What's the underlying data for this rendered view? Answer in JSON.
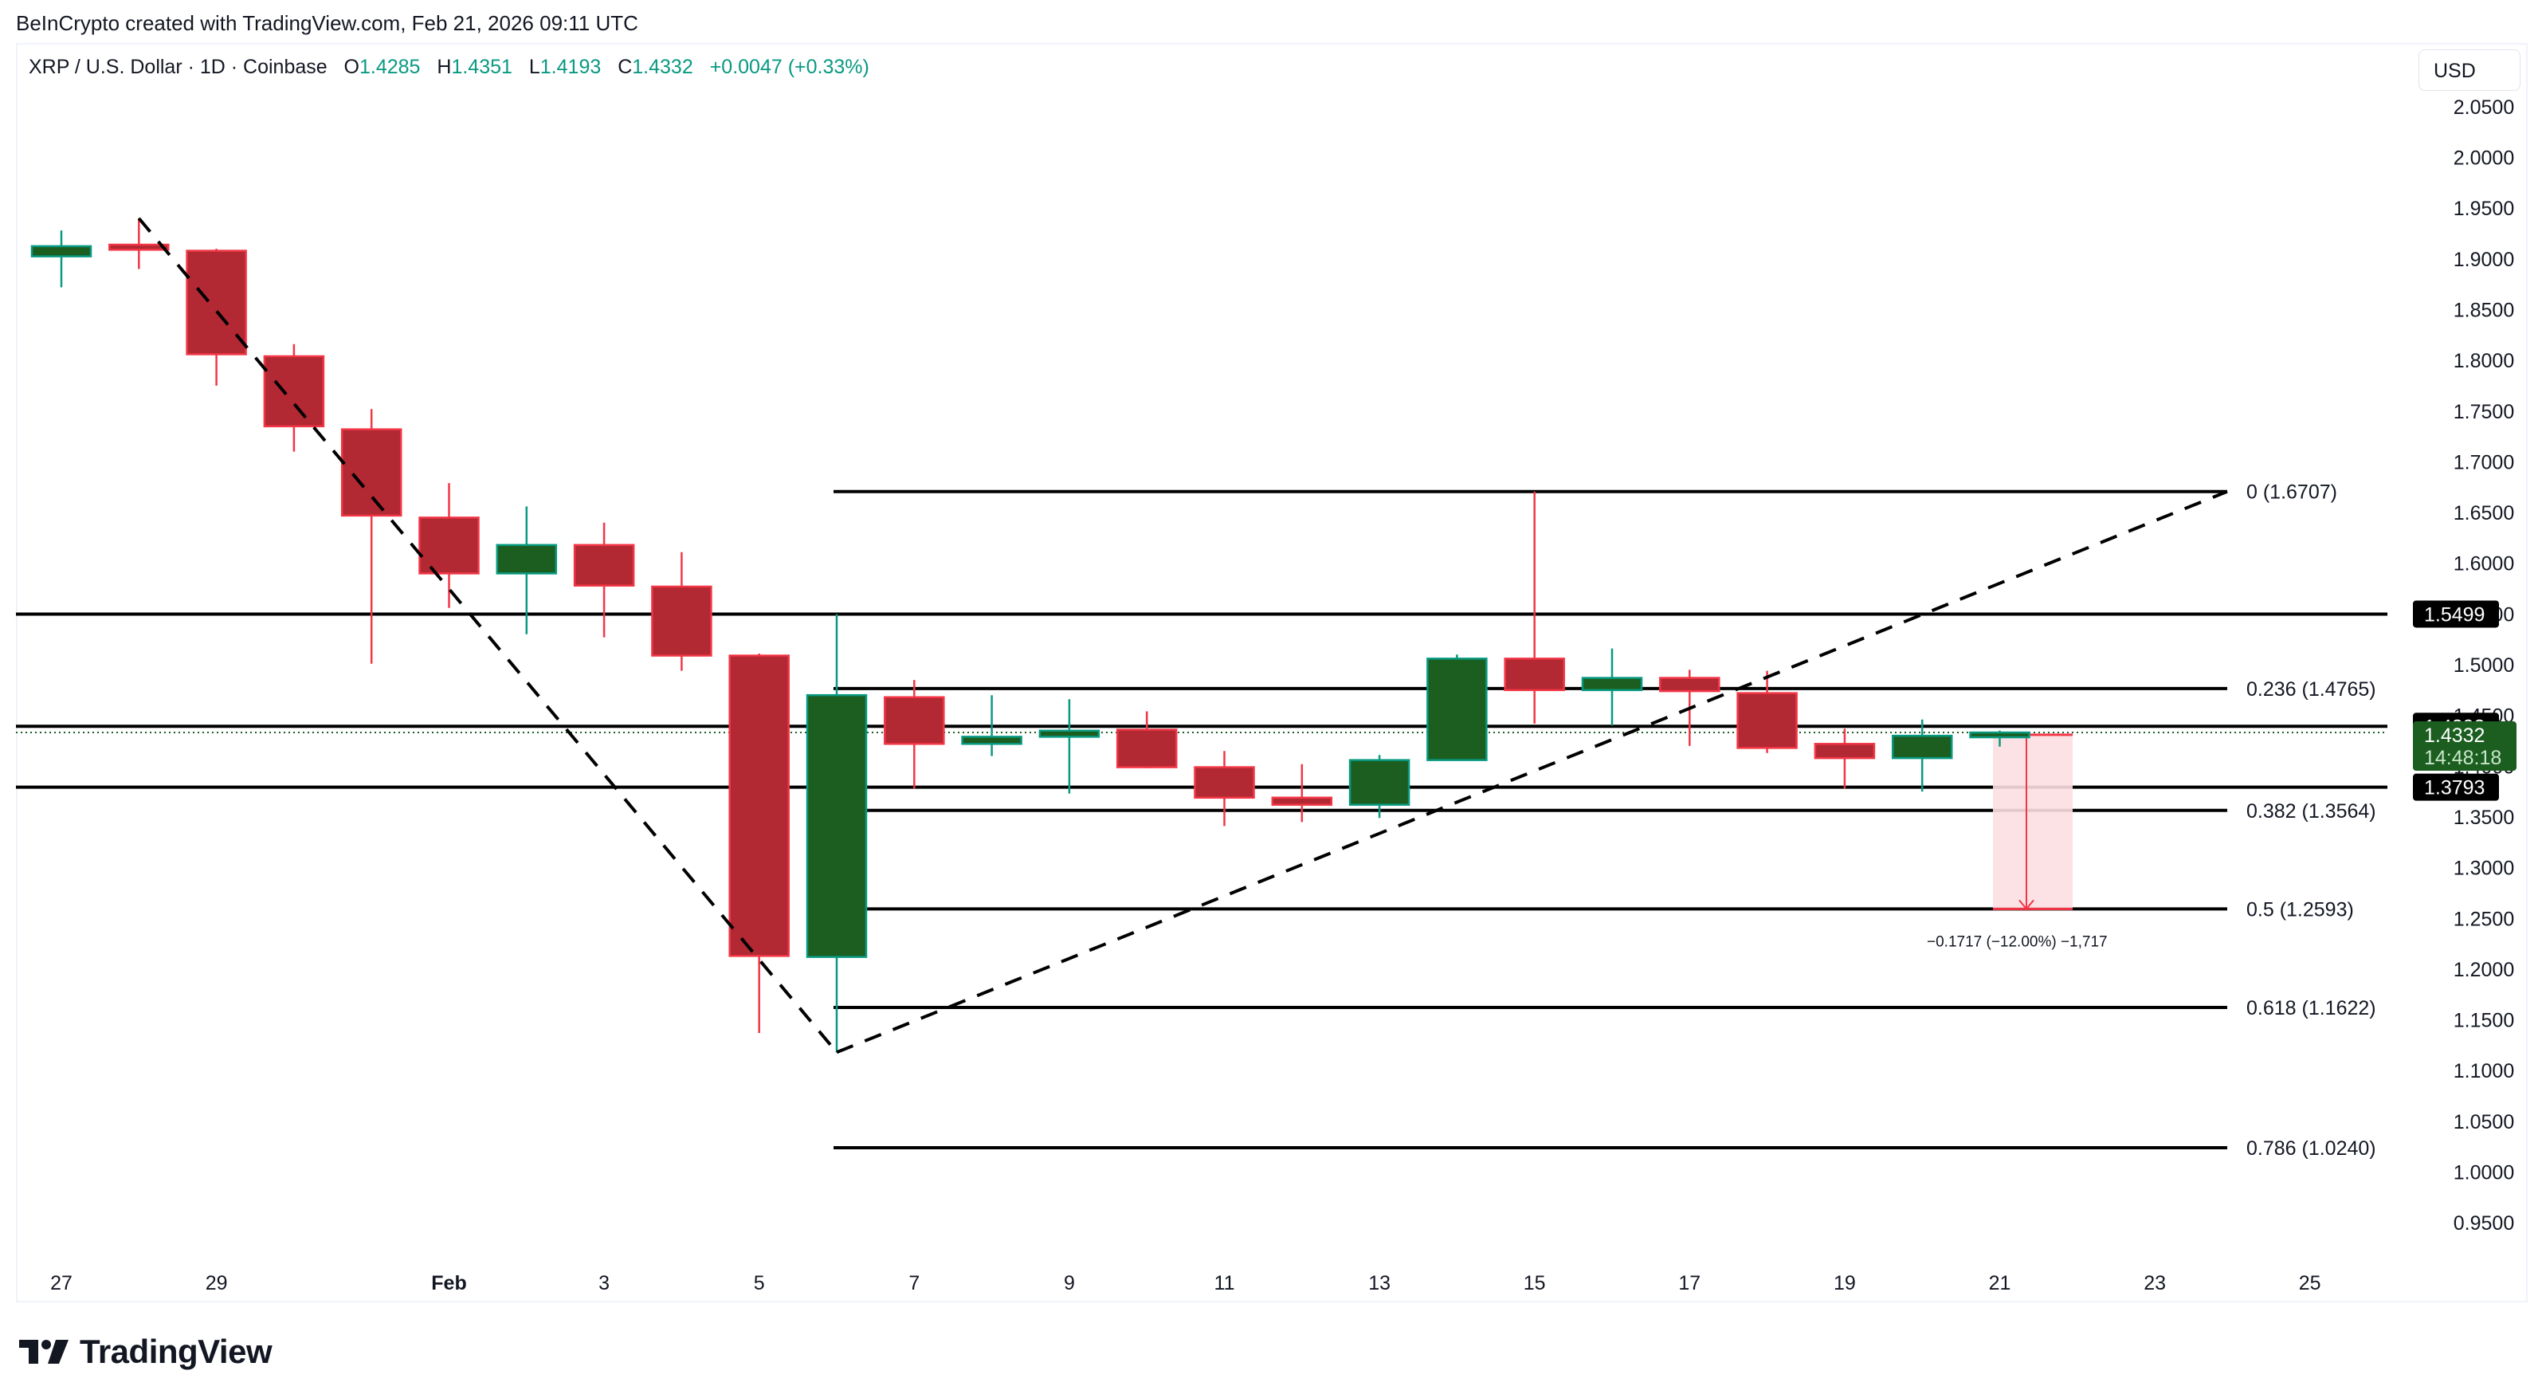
{
  "credit": "BeInCrypto created with TradingView.com, Feb 21, 2026 09:11 UTC",
  "legend": {
    "symbol": "XRP / U.S. Dollar · 1D · Coinbase",
    "open_label": "O",
    "open": "1.4285",
    "high_label": "H",
    "high": "1.4351",
    "low_label": "L",
    "low": "1.4193",
    "close_label": "C",
    "close": "1.4332",
    "change": "+0.0047 (+0.33%)"
  },
  "currency_button": "USD",
  "logo_text": "TradingView",
  "colors": {
    "up_fill": "#1b5e20",
    "up_border": "#089981",
    "down_fill": "#b22833",
    "down_border": "#f23645",
    "measure_fill": "#fcdfe2",
    "measure_line": "#f23645",
    "level_line": "#000000",
    "axis_text": "#131722"
  },
  "chart_data": {
    "type": "candlestick",
    "title": "XRP / U.S. Dollar · 1D · Coinbase",
    "xlabel": "",
    "ylabel": "USD",
    "ylim": [
      0.92,
      2.08
    ],
    "grid": false,
    "x_tick_labels": [
      "27",
      "29",
      "Feb",
      "3",
      "5",
      "7",
      "9",
      "11",
      "13",
      "15",
      "17",
      "19",
      "21",
      "23",
      "25"
    ],
    "y_tick_labels": [
      "2.0500",
      "2.0000",
      "1.9500",
      "1.9000",
      "1.8500",
      "1.8000",
      "1.7500",
      "1.7000",
      "1.6500",
      "1.6000",
      "1.5500",
      "1.5000",
      "1.4500",
      "1.4000",
      "1.3500",
      "1.3000",
      "1.2500",
      "1.2000",
      "1.1500",
      "1.1000",
      "1.0500",
      "1.0000",
      "0.9500"
    ],
    "candles": [
      {
        "date": "Jan 27",
        "o": 1.9025,
        "h": 1.928,
        "l": 1.872,
        "c": 1.9125
      },
      {
        "date": "Jan 28",
        "o": 1.914,
        "h": 1.94,
        "l": 1.89,
        "c": 1.909
      },
      {
        "date": "Jan 29",
        "o": 1.908,
        "h": 1.91,
        "l": 1.775,
        "c": 1.806
      },
      {
        "date": "Jan 30",
        "o": 1.804,
        "h": 1.816,
        "l": 1.71,
        "c": 1.735
      },
      {
        "date": "Jan 31",
        "o": 1.732,
        "h": 1.752,
        "l": 1.501,
        "c": 1.647
      },
      {
        "date": "Feb 1",
        "o": 1.645,
        "h": 1.679,
        "l": 1.556,
        "c": 1.59
      },
      {
        "date": "Feb 2",
        "o": 1.59,
        "h": 1.656,
        "l": 1.53,
        "c": 1.618
      },
      {
        "date": "Feb 3",
        "o": 1.618,
        "h": 1.64,
        "l": 1.527,
        "c": 1.578
      },
      {
        "date": "Feb 4",
        "o": 1.577,
        "h": 1.611,
        "l": 1.494,
        "c": 1.509
      },
      {
        "date": "Feb 5",
        "o": 1.509,
        "h": 1.511,
        "l": 1.137,
        "c": 1.213
      },
      {
        "date": "Feb 6",
        "o": 1.212,
        "h": 1.5499,
        "l": 1.118,
        "c": 1.47
      },
      {
        "date": "Feb 7",
        "o": 1.468,
        "h": 1.485,
        "l": 1.378,
        "c": 1.422
      },
      {
        "date": "Feb 8",
        "o": 1.422,
        "h": 1.47,
        "l": 1.41,
        "c": 1.429
      },
      {
        "date": "Feb 9",
        "o": 1.429,
        "h": 1.466,
        "l": 1.373,
        "c": 1.435
      },
      {
        "date": "Feb 10",
        "o": 1.436,
        "h": 1.454,
        "l": 1.398,
        "c": 1.399
      },
      {
        "date": "Feb 11",
        "o": 1.399,
        "h": 1.415,
        "l": 1.341,
        "c": 1.369
      },
      {
        "date": "Feb 12",
        "o": 1.369,
        "h": 1.402,
        "l": 1.345,
        "c": 1.362
      },
      {
        "date": "Feb 13",
        "o": 1.362,
        "h": 1.411,
        "l": 1.349,
        "c": 1.406
      },
      {
        "date": "Feb 14",
        "o": 1.406,
        "h": 1.51,
        "l": 1.406,
        "c": 1.506
      },
      {
        "date": "Feb 15",
        "o": 1.506,
        "h": 1.6707,
        "l": 1.442,
        "c": 1.475
      },
      {
        "date": "Feb 16",
        "o": 1.475,
        "h": 1.516,
        "l": 1.44,
        "c": 1.487
      },
      {
        "date": "Feb 17",
        "o": 1.487,
        "h": 1.495,
        "l": 1.42,
        "c": 1.474
      },
      {
        "date": "Feb 18",
        "o": 1.472,
        "h": 1.494,
        "l": 1.413,
        "c": 1.418
      },
      {
        "date": "Feb 19",
        "o": 1.422,
        "h": 1.437,
        "l": 1.378,
        "c": 1.408
      },
      {
        "date": "Feb 20",
        "o": 1.408,
        "h": 1.446,
        "l": 1.375,
        "c": 1.43
      },
      {
        "date": "Feb 21",
        "o": 1.4285,
        "h": 1.4351,
        "l": 1.4193,
        "c": 1.4332
      }
    ],
    "horizontal_levels": [
      {
        "price": 1.5499,
        "label": "1.5499"
      },
      {
        "price": 1.4393,
        "label": "1.4393"
      },
      {
        "price": 1.3793,
        "label": "1.3793"
      }
    ],
    "current_price": {
      "price": 1.4332,
      "label": "1.4332",
      "countdown": "14:48:18"
    },
    "fibonacci": [
      {
        "ratio": "0",
        "price": 1.6707,
        "label": "0 (1.6707)"
      },
      {
        "ratio": "0.236",
        "price": 1.4765,
        "label": "0.236 (1.4765)"
      },
      {
        "ratio": "0.382",
        "price": 1.3564,
        "label": "0.382 (1.3564)"
      },
      {
        "ratio": "0.5",
        "price": 1.2593,
        "label": "0.5 (1.2593)"
      },
      {
        "ratio": "0.618",
        "price": 1.1622,
        "label": "0.618 (1.1622)"
      },
      {
        "ratio": "0.786",
        "price": 1.024,
        "label": "0.786 (1.0240)"
      }
    ],
    "trend_lines": [
      {
        "style": "dashed",
        "from": {
          "date": "Jan 28",
          "price": 1.94
        },
        "to": {
          "date": "Feb 6",
          "price": 1.118
        }
      },
      {
        "style": "dashed",
        "from": {
          "date": "Feb 6",
          "price": 1.118
        },
        "to": {
          "date": "Feb 24",
          "price": 1.6707
        }
      }
    ],
    "measurement": {
      "from_price": 1.431,
      "to_price": 1.2593,
      "label": "−0.1717 (−12.00%) −1,717"
    }
  }
}
